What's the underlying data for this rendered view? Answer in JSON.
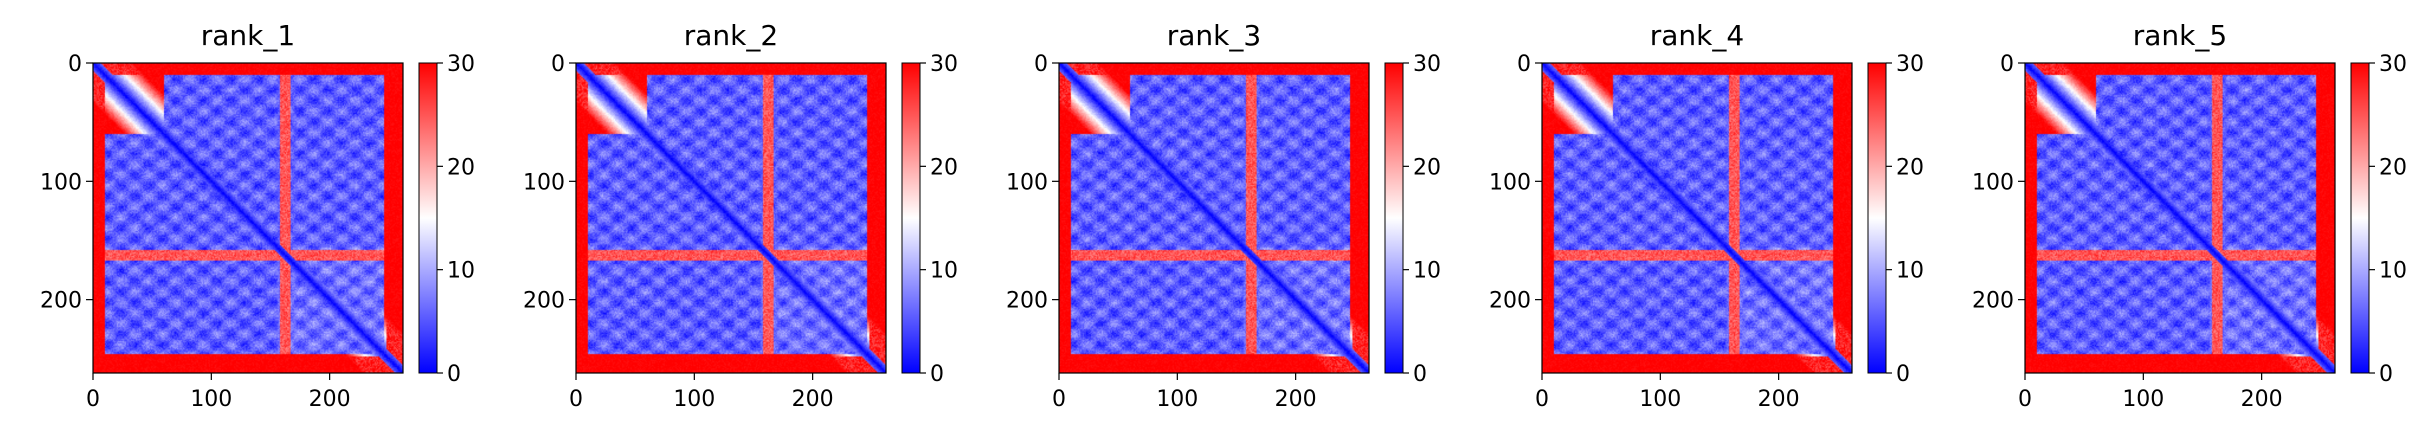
{
  "chart_data": [
    {
      "type": "heatmap",
      "title": "rank_1",
      "matrix_size": 262,
      "xlim": [
        0,
        262
      ],
      "ylim": [
        262,
        0
      ],
      "x_ticks": [
        0,
        100,
        200
      ],
      "y_ticks": [
        0,
        100,
        200
      ],
      "colorbar": {
        "range": [
          0,
          30
        ],
        "ticks": [
          0,
          10,
          20,
          30
        ],
        "colors": [
          "#0000ff",
          "#ffffff",
          "#ff0000"
        ]
      },
      "diagonal_value": 0,
      "background_value": 30,
      "blocks": [
        [
          10,
          155,
          60,
          245,
          4
        ],
        [
          160,
          245,
          110,
          235,
          5
        ],
        [
          165,
          245,
          10,
          160,
          7
        ]
      ],
      "bands": [
        160,
        164
      ]
    },
    {
      "type": "heatmap",
      "title": "rank_2",
      "matrix_size": 262,
      "xlim": [
        0,
        262
      ],
      "ylim": [
        262,
        0
      ],
      "x_ticks": [
        0,
        100,
        200
      ],
      "y_ticks": [
        0,
        100,
        200
      ],
      "colorbar": {
        "range": [
          0,
          30
        ],
        "ticks": [
          0,
          10,
          20,
          30
        ],
        "colors": [
          "#0000ff",
          "#ffffff",
          "#ff0000"
        ]
      },
      "diagonal_value": 0,
      "background_value": 30,
      "blocks": [
        [
          10,
          155,
          60,
          245,
          4
        ],
        [
          160,
          245,
          110,
          235,
          5
        ],
        [
          165,
          245,
          10,
          160,
          7
        ]
      ],
      "bands": [
        160,
        164
      ]
    },
    {
      "type": "heatmap",
      "title": "rank_3",
      "matrix_size": 262,
      "xlim": [
        0,
        262
      ],
      "ylim": [
        262,
        0
      ],
      "x_ticks": [
        0,
        100,
        200
      ],
      "y_ticks": [
        0,
        100,
        200
      ],
      "colorbar": {
        "range": [
          0,
          30
        ],
        "ticks": [
          0,
          10,
          20,
          30
        ],
        "colors": [
          "#0000ff",
          "#ffffff",
          "#ff0000"
        ]
      },
      "diagonal_value": 0,
      "background_value": 30,
      "blocks": [
        [
          10,
          155,
          60,
          245,
          4
        ],
        [
          160,
          245,
          110,
          235,
          5
        ],
        [
          165,
          245,
          10,
          160,
          7
        ]
      ],
      "bands": [
        160,
        164
      ]
    },
    {
      "type": "heatmap",
      "title": "rank_4",
      "matrix_size": 262,
      "xlim": [
        0,
        262
      ],
      "ylim": [
        262,
        0
      ],
      "x_ticks": [
        0,
        100,
        200
      ],
      "y_ticks": [
        0,
        100,
        200
      ],
      "colorbar": {
        "range": [
          0,
          30
        ],
        "ticks": [
          0,
          10,
          20,
          30
        ],
        "colors": [
          "#0000ff",
          "#ffffff",
          "#ff0000"
        ]
      },
      "diagonal_value": 0,
      "background_value": 30,
      "blocks": [
        [
          10,
          155,
          60,
          245,
          4
        ],
        [
          160,
          245,
          110,
          235,
          5
        ],
        [
          165,
          245,
          10,
          160,
          7
        ]
      ],
      "bands": [
        160,
        164
      ]
    },
    {
      "type": "heatmap",
      "title": "rank_5",
      "matrix_size": 262,
      "xlim": [
        0,
        262
      ],
      "ylim": [
        262,
        0
      ],
      "x_ticks": [
        0,
        100,
        200
      ],
      "y_ticks": [
        0,
        100,
        200
      ],
      "colorbar": {
        "range": [
          0,
          30
        ],
        "ticks": [
          0,
          10,
          20,
          30
        ],
        "colors": [
          "#0000ff",
          "#ffffff",
          "#ff0000"
        ]
      },
      "diagonal_value": 0,
      "background_value": 30,
      "blocks": [
        [
          10,
          155,
          60,
          245,
          4
        ],
        [
          160,
          245,
          110,
          235,
          5
        ],
        [
          165,
          245,
          10,
          160,
          7
        ]
      ],
      "bands": [
        160,
        164
      ]
    }
  ]
}
